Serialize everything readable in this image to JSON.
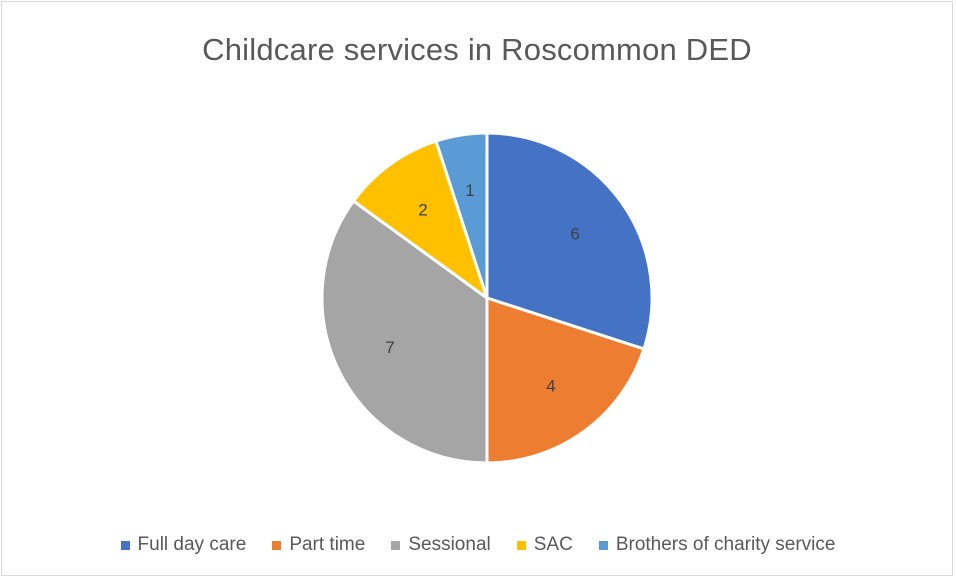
{
  "chart_data": {
    "type": "pie",
    "title": "Childcare services in Roscommon DED",
    "categories": [
      "Full day care",
      "Part time",
      "Sessional",
      "SAC",
      "Brothers of charity service"
    ],
    "values": [
      6,
      4,
      7,
      2,
      1
    ],
    "colors": [
      "#4472c4",
      "#ed7d31",
      "#a5a5a5",
      "#ffc000",
      "#5b9bd5"
    ],
    "data_labels": [
      "6",
      "4",
      "7",
      "2",
      "1"
    ],
    "legend_position": "bottom",
    "start_angle": "12 o'clock, clockwise"
  }
}
